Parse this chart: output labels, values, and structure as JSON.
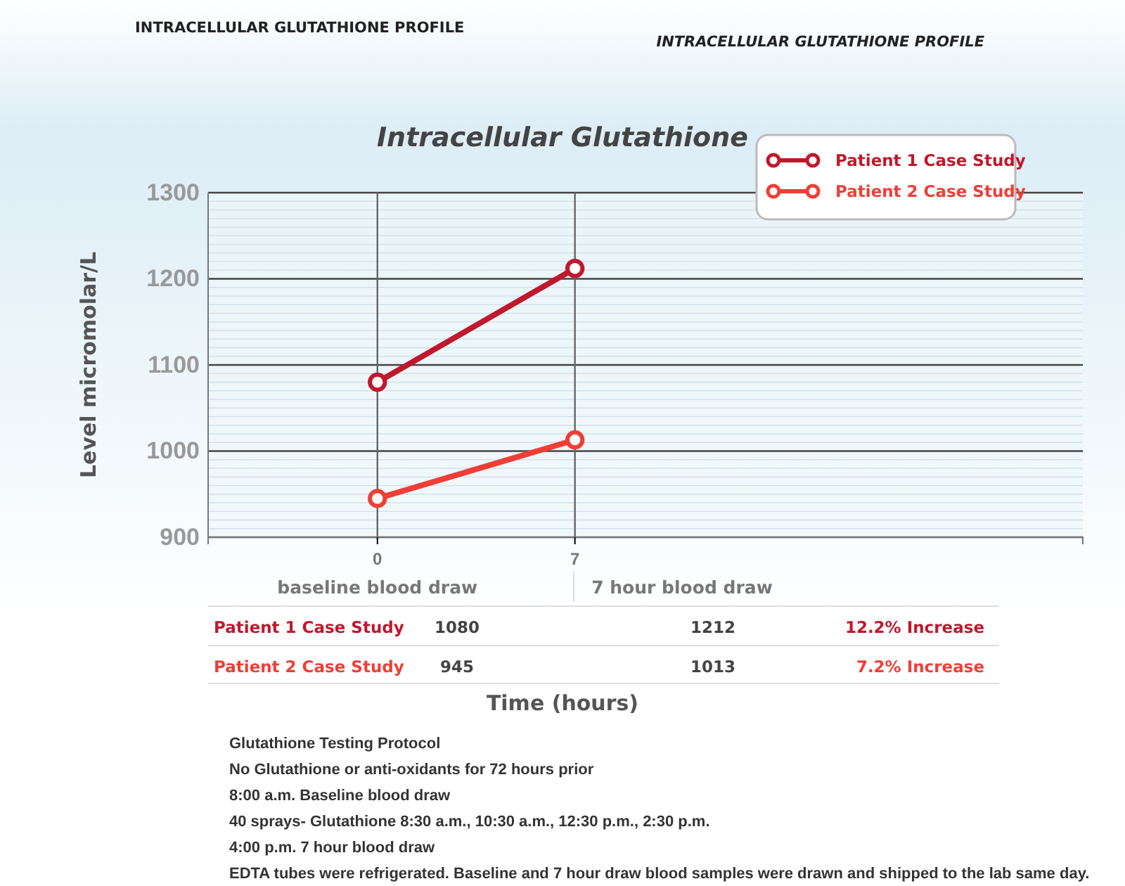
{
  "chart_data": {
    "type": "line",
    "title": "Intracellular Glutathione",
    "subtitle": "INTRACELLULAR GLUTATHIONE PROFILE",
    "ylabel": "Level micromolar/L",
    "x": [
      0,
      7
    ],
    "xlim": [
      -6,
      25
    ],
    "xticks": [
      0,
      7
    ],
    "ylim": [
      900,
      1300
    ],
    "yticks": [
      900,
      {
        "value": 910,
        "label": null
      },
      {
        "value": 920,
        "label": null
      },
      {
        "value": 930,
        "label": null
      },
      {
        "value": 940,
        "label": null
      },
      {
        "value": 950,
        "label": null
      },
      {
        "value": 960,
        "label": null
      },
      {
        "value": 970,
        "label": null
      },
      {
        "value": 980,
        "label": null
      },
      {
        "value": 990,
        "label": null
      },
      1000,
      {
        "value": 1010,
        "label": null
      },
      {
        "value": 1020,
        "label": null
      },
      {
        "value": 1030,
        "label": null
      },
      {
        "value": 1040,
        "label": null
      },
      {
        "value": 1050,
        "label": null
      },
      {
        "value": 1060,
        "label": null
      },
      {
        "value": 1070,
        "label": null
      },
      {
        "value": 1080,
        "label": null
      },
      {
        "value": 1090,
        "label": null
      },
      1100,
      {
        "value": 1110,
        "label": null
      },
      {
        "value": 1120,
        "label": null
      },
      {
        "value": 1130,
        "label": null
      },
      {
        "value": 1140,
        "label": null
      },
      {
        "value": 1150,
        "label": null
      },
      {
        "value": 1160,
        "label": null
      },
      {
        "value": 1170,
        "label": null
      },
      {
        "value": 1180,
        "label": null
      },
      {
        "value": 1190,
        "label": null
      },
      1200,
      {
        "value": 1210,
        "label": null
      },
      {
        "value": 1220,
        "label": null
      },
      {
        "value": 1230,
        "label": null
      },
      {
        "value": 1240,
        "label": null
      },
      {
        "value": 1250,
        "label": null
      },
      {
        "value": 1260,
        "label": null
      },
      {
        "value": 1270,
        "label": null
      },
      {
        "value": 1280,
        "label": null
      },
      {
        "value": 1290,
        "label": null
      },
      1300
    ],
    "series": [
      {
        "name": "Patient 1 Case Study",
        "color": "#c0182c",
        "values": [
          1080,
          1212
        ]
      },
      {
        "name": "Patient 2 Case Study",
        "color": "#ef3e36",
        "values": [
          945,
          1013
        ]
      }
    ],
    "grid": true,
    "legend": "top right",
    "marker": "circle",
    "line_style": "solid",
    "annotations": [
      "INTRACELLULAR GLUTATHIONE PROFILE",
      "baseline blood draw",
      "7 hour blood draw",
      "1080",
      "1212",
      "12.2% Increase",
      "945",
      "1013",
      "7.2% Increase",
      "Time (hours)",
      "Glutathione Testing Protocol",
      "No Glutathione or anti-oxidants for 72 hours prior",
      "8:00 a.m. Baseline blood draw",
      "40 sprays- Glutathione 8:30 a.m., 10:30 a.m., 12:30 p.m., 2:30 p.m.",
      "4:00 p.m. 7 hour blood draw",
      "EDTA tubes were refrigerated. Baseline and 7 hour draw blood samples were drawn and shipped to the lab same day."
    ]
  }
}
